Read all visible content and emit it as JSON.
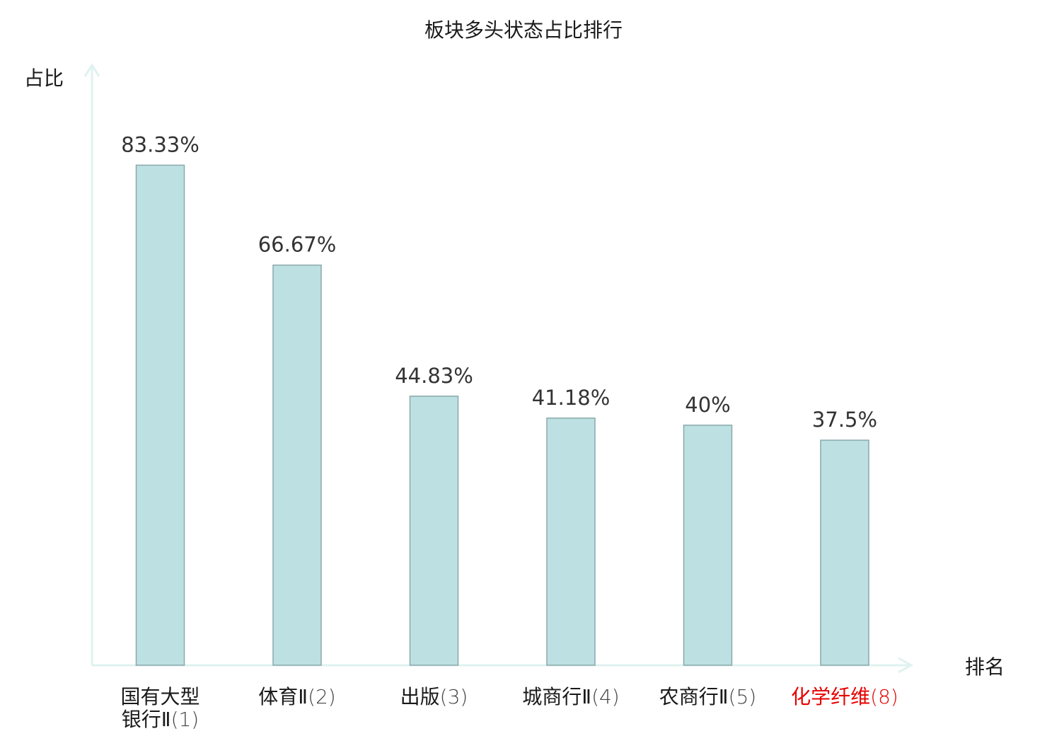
{
  "chart_data": {
    "type": "bar",
    "title": "板块多头状态占比排行",
    "ylabel": "占比",
    "xlabel": "排名",
    "ylim": [
      0,
      100
    ],
    "grid": false,
    "categories": [
      {
        "name_lines": [
          "国有大型",
          "银行Ⅱ"
        ],
        "rank": "(1)",
        "highlight": false
      },
      {
        "name_lines": [
          "体育Ⅱ"
        ],
        "rank": "(2)",
        "highlight": false
      },
      {
        "name_lines": [
          "出版"
        ],
        "rank": "(3)",
        "highlight": false
      },
      {
        "name_lines": [
          "城商行Ⅱ"
        ],
        "rank": "(4)",
        "highlight": false
      },
      {
        "name_lines": [
          "农商行Ⅱ"
        ],
        "rank": "(5)",
        "highlight": false
      },
      {
        "name_lines": [
          "化学纤维"
        ],
        "rank": "(8)",
        "highlight": true
      }
    ],
    "values": [
      83.33,
      66.67,
      44.83,
      41.18,
      40,
      37.5
    ],
    "value_labels": [
      "83.33%",
      "66.67%",
      "44.83%",
      "41.18%",
      "40%",
      "37.5%"
    ]
  },
  "colors": {
    "bar_fill": "#bde0e3",
    "bar_stroke": "#8aa9ab",
    "axis": "#dff2ef",
    "highlight": "#e60000",
    "text": "#1a1a1a",
    "value_text": "#333333",
    "rank_text": "#444444"
  }
}
